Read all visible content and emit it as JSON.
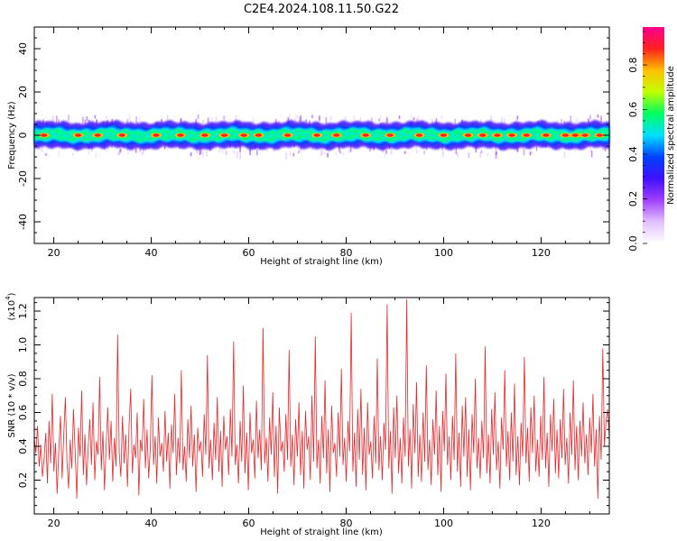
{
  "figure": {
    "title": "C2E4.2024.108.11.50.G22"
  },
  "chart_data": [
    {
      "type": "heatmap",
      "xlabel": "Height of straight line (km)",
      "ylabel": "Frequency (Hz)",
      "xlim": [
        16,
        134
      ],
      "ylim": [
        -50,
        50
      ],
      "xticks": [
        "20",
        "40",
        "60",
        "80",
        "100",
        "120"
      ],
      "yticks": [
        "-40",
        "-20",
        "0",
        "20",
        "40"
      ],
      "grid": false,
      "colorbar": {
        "label": "Normalized spectral amplitude",
        "range": [
          0.0,
          0.97
        ],
        "ticks": [
          "0.0",
          "0.2",
          "0.4",
          "0.6",
          "0.8"
        ],
        "colors": [
          "#ffffff",
          "#e2c0ff",
          "#a040ff",
          "#4010ff",
          "#0040ff",
          "#00e0ff",
          "#00ff60",
          "#c0ff00",
          "#ffc000",
          "#ff2020",
          "#ff0090"
        ]
      },
      "band": {
        "center_hz": 0,
        "half_width_hz": 3,
        "outer_half_width_hz": 6
      },
      "peak_positions_km": [
        18,
        25,
        29,
        34,
        41,
        46,
        51,
        55,
        59,
        62,
        68,
        74,
        78,
        84,
        89,
        95,
        100,
        105,
        108,
        111,
        114,
        117,
        121,
        125,
        127,
        129,
        132
      ]
    },
    {
      "type": "line",
      "xlabel": "Height of straight line (km)",
      "ylabel": "SNR (10 * v/v)",
      "yscale_label": "(x10",
      "yscale_exp": "4",
      "yscale_close": ")",
      "xlim": [
        16,
        134
      ],
      "ylim": [
        0,
        1.28
      ],
      "xticks": [
        "20",
        "40",
        "60",
        "80",
        "100",
        "120"
      ],
      "yticks": [
        "0.2",
        "0.4",
        "0.6",
        "0.8",
        "1.0",
        "1.2"
      ],
      "grid": false,
      "series": [
        {
          "color": "#e8262a",
          "x_start": 16,
          "x_end": 134,
          "values": [
            0.45,
            0.36,
            0.52,
            0.28,
            0.41,
            0.22,
            0.33,
            0.48,
            0.18,
            0.55,
            0.3,
            0.71,
            0.25,
            0.42,
            0.12,
            0.37,
            0.58,
            0.21,
            0.46,
            0.69,
            0.31,
            0.15,
            0.44,
            0.27,
            0.62,
            0.38,
            0.09,
            0.51,
            0.34,
            0.73,
            0.23,
            0.47,
            0.17,
            0.39,
            0.56,
            0.29,
            0.66,
            0.2,
            0.43,
            0.35,
            0.81,
            0.26,
            0.49,
            0.14,
            0.4,
            0.63,
            0.32,
            0.55,
            0.19,
            0.45,
            0.28,
            1.06,
            0.36,
            0.22,
            0.58,
            0.3,
            0.47,
            0.16,
            0.52,
            0.74,
            0.24,
            0.41,
            0.33,
            0.6,
            0.11,
            0.44,
            0.37,
            0.68,
            0.27,
            0.5,
            0.21,
            0.39,
            0.82,
            0.29,
            0.46,
            0.18,
            0.57,
            0.34,
            0.42,
            0.25,
            0.61,
            0.31,
            0.48,
            0.15,
            0.53,
            0.36,
            0.71,
            0.23,
            0.45,
            0.3,
            0.85,
            0.26,
            0.4,
            0.19,
            0.56,
            0.33,
            0.64,
            0.28,
            0.47,
            0.13,
            0.51,
            0.37,
            0.43,
            0.22,
            0.59,
            0.35,
            0.94,
            0.27,
            0.44,
            0.2,
            0.54,
            0.32,
            0.69,
            0.25,
            0.49,
            0.16,
            0.58,
            0.38,
            0.46,
            0.23,
            0.62,
            0.34,
            1.02,
            0.29,
            0.41,
            0.18,
            0.55,
            0.31,
            0.76,
            0.24,
            0.48,
            0.14,
            0.6,
            0.36,
            0.44,
            0.21,
            0.67,
            0.33,
            0.5,
            0.26,
            1.1,
            0.3,
            0.45,
            0.19,
            0.57,
            0.35,
            0.72,
            0.22,
            0.52,
            0.12,
            0.63,
            0.37,
            0.43,
            0.25,
            0.59,
            0.32,
            0.97,
            0.28,
            0.47,
            0.17,
            0.56,
            0.34,
            0.66,
            0.23,
            0.49,
            0.15,
            0.61,
            0.38,
            0.46,
            0.2,
            0.7,
            0.31,
            1.05,
            0.27,
            0.44,
            0.18,
            0.58,
            0.33,
            0.79,
            0.24,
            0.5,
            0.13,
            0.64,
            0.36,
            0.42,
            0.22,
            0.6,
            0.34,
            0.86,
            0.29,
            0.45,
            0.19,
            0.55,
            0.37,
            1.19,
            0.25,
            0.48,
            0.16,
            0.62,
            0.32,
            0.74,
            0.23,
            0.51,
            0.14,
            0.66,
            0.35,
            0.43,
            0.21,
            0.58,
            0.3,
            0.92,
            0.26,
            0.46,
            0.2,
            0.54,
            0.38,
            1.24,
            0.27,
            0.49,
            0.12,
            0.63,
            0.33,
            0.7,
            0.24,
            0.45,
            0.18,
            0.57,
            0.34,
            1.27,
            0.28,
            0.5,
            0.15,
            0.65,
            0.36,
            0.78,
            0.22,
            0.47,
            0.19,
            0.6,
            0.31,
            0.88,
            0.26,
            0.44,
            0.17,
            0.56,
            0.35,
            0.73,
            0.23,
            0.52,
            0.13,
            0.61,
            0.37,
            0.83,
            0.29,
            0.46,
            0.2,
            0.58,
            0.32,
            0.95,
            0.25,
            0.48,
            0.16,
            0.64,
            0.34,
            0.69,
            0.22,
            0.5,
            0.14,
            0.59,
            0.36,
            0.8,
            0.27,
            0.45,
            0.21,
            0.55,
            0.33,
            0.99,
            0.24,
            0.47,
            0.18,
            0.62,
            0.35,
            0.72,
            0.26,
            0.43,
            0.15,
            0.57,
            0.38,
            0.85,
            0.28,
            0.49,
            0.2,
            0.6,
            0.31,
            0.77,
            0.23,
            0.46,
            0.17,
            0.54,
            0.34,
            0.93,
            0.3,
            0.51,
            0.19,
            0.63,
            0.36,
            0.7,
            0.25,
            0.44,
            0.22,
            0.58,
            0.32,
            0.81,
            0.27,
            0.48,
            0.16,
            0.59,
            0.37,
            0.68,
            0.24,
            0.5,
            0.21,
            0.56,
            0.33,
            0.74,
            0.29,
            0.45,
            0.18,
            0.6,
            0.35,
            0.79,
            0.26,
            0.52,
            0.2,
            0.55,
            0.34,
            0.66,
            0.3,
            0.47,
            0.23,
            0.57,
            0.36,
            0.71,
            0.28,
            0.5,
            0.09,
            0.58,
            0.32,
            0.98,
            0.4,
            0.55,
            0.62,
            0.45
          ]
        }
      ]
    }
  ]
}
